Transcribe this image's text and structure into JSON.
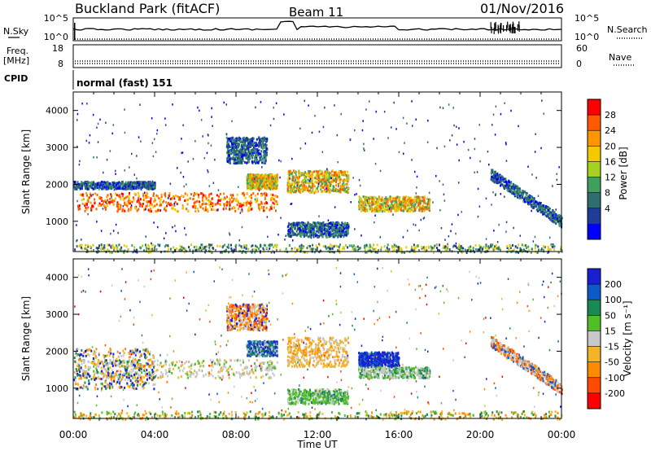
{
  "header": {
    "station": "Buckland Park (fitACF)",
    "beam": "Beam 11",
    "date": "01/Nov/2016"
  },
  "noise_panel": {
    "left_label": "N.Sky",
    "right_label": "N.Search",
    "ticks_left": [
      "10^5",
      "10^0"
    ],
    "ticks_right": [
      "10^5",
      "10^0"
    ]
  },
  "freq_panel": {
    "left_label_1": "Freq.",
    "left_label_2": "[MHz]",
    "right_label": "Nave",
    "ticks_left": [
      "18",
      "8"
    ],
    "ticks_right": [
      "60",
      "0"
    ]
  },
  "cpid": {
    "label": "CPID",
    "value": "normal (fast) 151"
  },
  "colorbar_power": {
    "label": "Power [dB]",
    "ticks": [
      "28",
      "24",
      "20",
      "16",
      "12",
      "8",
      "4"
    ],
    "colors": [
      "#ff0000",
      "#ff5a00",
      "#ff9600",
      "#f5c800",
      "#a8d020",
      "#3f9f5f",
      "#2e6e70",
      "#1f3d98",
      "#0000ff"
    ]
  },
  "colorbar_velocity": {
    "label": "Velocity [m s⁻¹]",
    "ticks": [
      "200",
      "100",
      "50",
      "15",
      "-15",
      "-50",
      "-100",
      "-200"
    ],
    "colors": [
      "#1a1fd0",
      "#0b5ac8",
      "#1a8a55",
      "#4fbf28",
      "#c8c8c8",
      "#f4b428",
      "#ff8a00",
      "#ff4a00",
      "#ff0000"
    ]
  },
  "chart_data": [
    {
      "type": "heatmap",
      "title": "Power",
      "ylabel": "Slant Range [km]",
      "xlabel": "Time UT",
      "x_ticks": [
        "00:00",
        "04:00",
        "08:00",
        "12:00",
        "16:00",
        "20:00",
        "00:00"
      ],
      "y_ticks": [
        "4000",
        "3000",
        "2000",
        "1000"
      ],
      "ylim": [
        180,
        4500
      ],
      "xlim_hours": [
        0,
        24
      ],
      "bands": [
        {
          "t0": 0.2,
          "t1": 10.0,
          "r0": 1300,
          "r1": 1800,
          "level": "high"
        },
        {
          "t0": 0.0,
          "t1": 4.0,
          "r0": 1900,
          "r1": 2100,
          "level": "low"
        },
        {
          "t0": 8.5,
          "t1": 10.0,
          "r0": 1900,
          "r1": 2300,
          "level": "mid"
        },
        {
          "t0": 7.5,
          "t1": 9.5,
          "r0": 2600,
          "r1": 3300,
          "level": "low"
        },
        {
          "t0": 10.5,
          "t1": 13.5,
          "r0": 1800,
          "r1": 2400,
          "level": "mid"
        },
        {
          "t0": 10.5,
          "t1": 13.5,
          "r0": 600,
          "r1": 1000,
          "level": "low"
        },
        {
          "t0": 14.0,
          "t1": 17.5,
          "r0": 1300,
          "r1": 1700,
          "level": "mid"
        },
        {
          "t0": 20.5,
          "t1": 24.0,
          "r0": 1000,
          "r1": 2300,
          "level": "low"
        },
        {
          "t0": 0.0,
          "t1": 24.0,
          "r0": 180,
          "r1": 400,
          "level": "ground"
        }
      ]
    },
    {
      "type": "heatmap",
      "title": "Velocity",
      "ylabel": "Slant Range [km]",
      "xlabel": "Time UT",
      "x_ticks": [
        "00:00",
        "04:00",
        "08:00",
        "12:00",
        "16:00",
        "20:00",
        "00:00"
      ],
      "y_ticks": [
        "4000",
        "3000",
        "2000",
        "1000"
      ],
      "ylim": [
        180,
        4500
      ],
      "xlim_hours": [
        0,
        24
      ]
    }
  ]
}
